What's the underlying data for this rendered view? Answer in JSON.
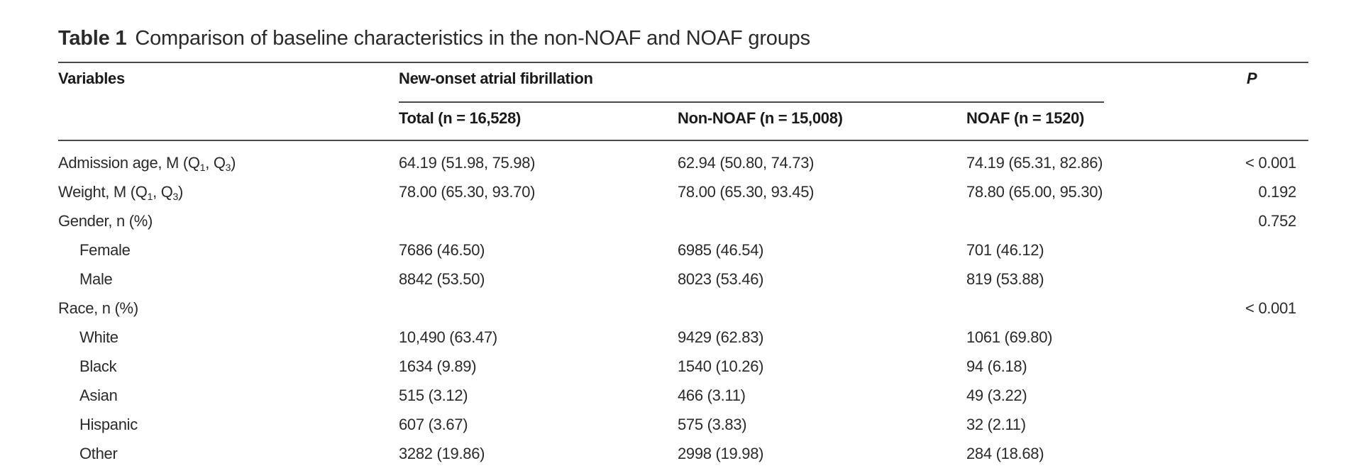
{
  "caption": {
    "label": "Table 1",
    "text": "Comparison of baseline characteristics in the non-NOAF and NOAF groups"
  },
  "headers": {
    "variables": "Variables",
    "group": "New-onset atrial fibrillation",
    "p": "P",
    "total": "Total (n = 16,528)",
    "non_noaf": "Non-NOAF (n = 15,008)",
    "noaf": "NOAF (n = 1520)"
  },
  "rows": [
    {
      "label": "Admission age, M (Q",
      "sub1": "1",
      "mid": ", Q",
      "sub2": "3",
      "end": ")",
      "indent": false,
      "total": "64.19 (51.98, 75.98)",
      "non_noaf": "62.94 (50.80, 74.73)",
      "noaf": "74.19 (65.31, 82.86)",
      "p": "< 0.001"
    },
    {
      "label": "Weight, M (Q",
      "sub1": "1",
      "mid": ", Q",
      "sub2": "3",
      "end": ")",
      "indent": false,
      "total": "78.00 (65.30, 93.70)",
      "non_noaf": "78.00 (65.30, 93.45)",
      "noaf": "78.80 (65.00, 95.30)",
      "p": "0.192"
    },
    {
      "label": "Gender, n (%)",
      "indent": false,
      "total": "",
      "non_noaf": "",
      "noaf": "",
      "p": "0.752"
    },
    {
      "label": "Female",
      "indent": true,
      "total": "7686 (46.50)",
      "non_noaf": "6985 (46.54)",
      "noaf": "701 (46.12)",
      "p": ""
    },
    {
      "label": "Male",
      "indent": true,
      "total": "8842 (53.50)",
      "non_noaf": "8023 (53.46)",
      "noaf": "819 (53.88)",
      "p": ""
    },
    {
      "label": "Race, n (%)",
      "indent": false,
      "total": "",
      "non_noaf": "",
      "noaf": "",
      "p": "< 0.001"
    },
    {
      "label": "White",
      "indent": true,
      "total": "10,490 (63.47)",
      "non_noaf": "9429 (62.83)",
      "noaf": "1061 (69.80)",
      "p": ""
    },
    {
      "label": "Black",
      "indent": true,
      "total": "1634 (9.89)",
      "non_noaf": "1540 (10.26)",
      "noaf": "94 (6.18)",
      "p": ""
    },
    {
      "label": "Asian",
      "indent": true,
      "total": "515 (3.12)",
      "non_noaf": "466 (3.11)",
      "noaf": "49 (3.22)",
      "p": ""
    },
    {
      "label": "Hispanic",
      "indent": true,
      "total": "607 (3.67)",
      "non_noaf": "575 (3.83)",
      "noaf": "32 (2.11)",
      "p": ""
    },
    {
      "label": "Other",
      "indent": true,
      "total": "3282 (19.86)",
      "non_noaf": "2998 (19.98)",
      "noaf": "284 (18.68)",
      "p": ""
    }
  ]
}
